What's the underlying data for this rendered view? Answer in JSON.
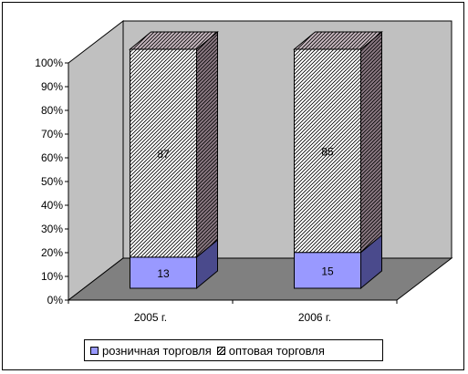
{
  "chart_data": {
    "type": "bar",
    "stacked": "percent",
    "three_d": true,
    "categories": [
      "2005 г.",
      "2006 г."
    ],
    "series": [
      {
        "name": "розничная торговля",
        "values": [
          13,
          15
        ],
        "color": "#9999ff"
      },
      {
        "name": "оптовая торговля",
        "values": [
          87,
          85
        ],
        "color": "#ffffff",
        "pattern": "diagonal-hatch"
      }
    ],
    "yticks": [
      "0%",
      "10%",
      "20%",
      "30%",
      "40%",
      "50%",
      "60%",
      "70%",
      "80%",
      "90%",
      "100%"
    ],
    "ylim": [
      0,
      100
    ],
    "legend_position": "bottom",
    "colors": {
      "wall": "#c0c0c0",
      "floor": "#808080",
      "retail_side": "#4a4a8c",
      "wholesale_side": "#8c7a84"
    }
  }
}
